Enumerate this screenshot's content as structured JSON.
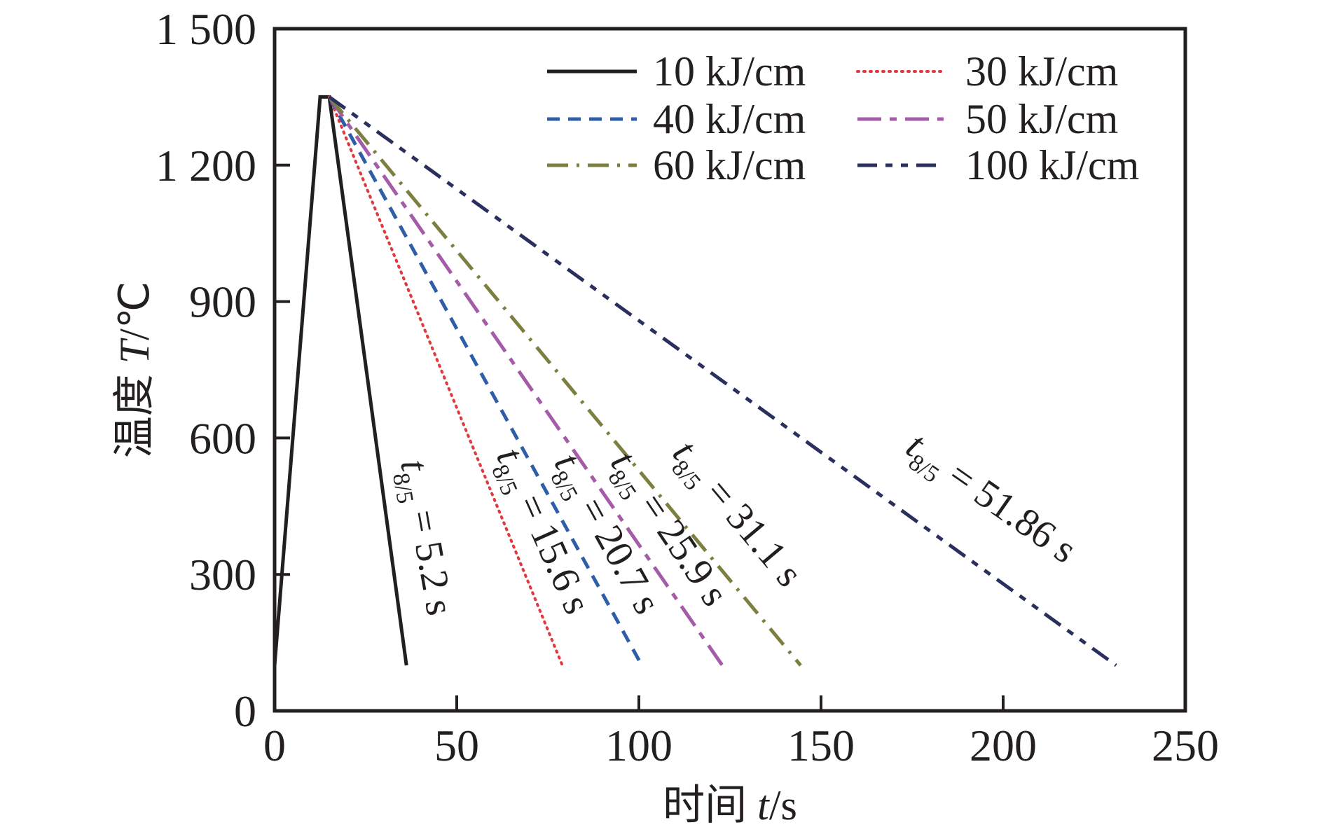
{
  "chart_data": {
    "type": "line",
    "title": "",
    "xlabel": "时间 t/s",
    "xlabel_parts": {
      "prefix": "时间 ",
      "var": "t",
      "unit": "/s"
    },
    "ylabel": "温度 T/℃",
    "ylabel_parts": {
      "prefix": "温度 ",
      "var": "T",
      "unit": "/℃"
    },
    "xlim": [
      0,
      250
    ],
    "ylim": [
      0,
      1500
    ],
    "xticks": [
      0,
      50,
      100,
      150,
      200,
      250
    ],
    "xtick_labels": [
      "0",
      "50",
      "100",
      "150",
      "200",
      "250"
    ],
    "yticks": [
      0,
      300,
      600,
      900,
      1200,
      1500
    ],
    "ytick_labels": [
      "0",
      "300",
      "600",
      "900",
      "1 200",
      "1 500"
    ],
    "grid": false,
    "legend_position": "top-right",
    "series": [
      {
        "name": "10 kJ/cm",
        "color": "#231f20",
        "style": "solid",
        "x": [
          0,
          12.5,
          15,
          36.2
        ],
        "y": [
          100,
          1350,
          1350,
          100
        ],
        "annotation": {
          "sub": "8/5",
          "value": "= 5.2 s"
        }
      },
      {
        "name": "30 kJ/cm",
        "color": "#e03a3e",
        "style": "dotted",
        "x": [
          15,
          79
        ],
        "y": [
          1350,
          100
        ],
        "annotation": {
          "sub": "8/5",
          "value": "= 15.6 s"
        }
      },
      {
        "name": "40 kJ/cm",
        "color": "#2f5ea8",
        "style": "dashed",
        "x": [
          15,
          100.8
        ],
        "y": [
          1350,
          100
        ],
        "annotation": {
          "sub": "8/5",
          "value": "= 20.7 s"
        }
      },
      {
        "name": "50 kJ/cm",
        "color": "#a45ca8",
        "style": "longdash-dot",
        "x": [
          15,
          122.9
        ],
        "y": [
          1350,
          100
        ],
        "annotation": {
          "sub": "8/5",
          "value": "= 25.9 s"
        }
      },
      {
        "name": "60 kJ/cm",
        "color": "#7d7f40",
        "style": "dashdot",
        "x": [
          15,
          144.4
        ],
        "y": [
          1350,
          100
        ],
        "annotation": {
          "sub": "8/5",
          "value": "= 31.1 s"
        }
      },
      {
        "name": "100 kJ/cm",
        "color": "#2b2f5e",
        "style": "dash-dot-dot",
        "x": [
          15,
          231
        ],
        "y": [
          1350,
          100
        ],
        "annotation": {
          "sub": "8/5",
          "value": "= 51.86 s"
        }
      }
    ],
    "annotation_var": "t"
  }
}
